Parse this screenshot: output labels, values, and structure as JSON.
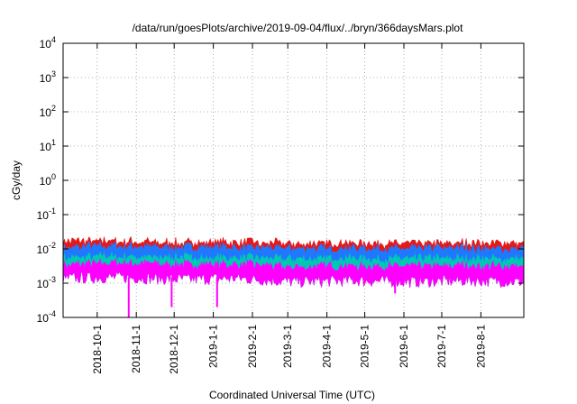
{
  "chart_data": {
    "type": "area",
    "title": "/data/run/goesPlots/archive/2019-09-04/flux/../bryn/366daysMars.plot",
    "xlabel": "Coordinated Universal Time (UTC)",
    "ylabel": "cGy/day",
    "yscale": "log",
    "ylim": [
      0.0001,
      10000
    ],
    "xlim": [
      "2018-09-04",
      "2019-09-04"
    ],
    "grid": true,
    "y_ticks": [
      {
        "base": "10",
        "exp": "-4"
      },
      {
        "base": "10",
        "exp": "-3"
      },
      {
        "base": "10",
        "exp": "-2"
      },
      {
        "base": "10",
        "exp": "-1"
      },
      {
        "base": "10",
        "exp": "0"
      },
      {
        "base": "10",
        "exp": "1"
      },
      {
        "base": "10",
        "exp": "2"
      },
      {
        "base": "10",
        "exp": "3"
      },
      {
        "base": "10",
        "exp": "4"
      }
    ],
    "x_ticks": [
      "2018-10-1",
      "2018-11-1",
      "2018-12-1",
      "2019-1-1",
      "2019-2-1",
      "2019-3-1",
      "2019-4-1",
      "2019-5-1",
      "2019-6-1",
      "2019-7-1",
      "2019-8-1"
    ],
    "series": [
      {
        "color": "#e31a1c",
        "x": [
          "2018-09-04",
          "2018-10-15",
          "2018-12-01",
          "2019-01-15",
          "2019-03-01",
          "2019-04-15",
          "2019-06-01",
          "2019-07-15",
          "2019-09-04"
        ],
        "values": [
          0.016,
          0.017,
          0.015,
          0.016,
          0.014,
          0.015,
          0.014,
          0.015,
          0.014
        ]
      },
      {
        "color": "#1f78ff",
        "x": [
          "2018-09-04",
          "2018-10-15",
          "2018-12-01",
          "2019-01-15",
          "2019-03-01",
          "2019-04-15",
          "2019-06-01",
          "2019-07-15",
          "2019-09-04"
        ],
        "values": [
          0.011,
          0.012,
          0.011,
          0.011,
          0.01,
          0.0105,
          0.01,
          0.0105,
          0.01
        ]
      },
      {
        "color": "#00c8b4",
        "x": [
          "2018-09-04",
          "2018-10-15",
          "2018-12-01",
          "2019-01-15",
          "2019-03-01",
          "2019-04-15",
          "2019-06-01",
          "2019-07-15",
          "2019-09-04"
        ],
        "values": [
          0.0055,
          0.006,
          0.0055,
          0.0055,
          0.005,
          0.0052,
          0.005,
          0.0052,
          0.005
        ]
      },
      {
        "color": "#ff00ff",
        "x": [
          "2018-09-04",
          "2018-10-15",
          "2018-12-01",
          "2019-01-15",
          "2019-03-01",
          "2019-04-15",
          "2019-06-01",
          "2019-07-15",
          "2019-09-04"
        ],
        "values": [
          0.0035,
          0.0038,
          0.0035,
          0.0035,
          0.003,
          0.0032,
          0.003,
          0.0032,
          0.003
        ]
      }
    ],
    "floor": [
      0.0014,
      0.0015,
      0.0013,
      0.0014,
      0.0011,
      0.0012,
      0.0011,
      0.0012,
      0.0011
    ],
    "dips": [
      {
        "x": "2018-10-26",
        "value": 0.0001
      },
      {
        "x": "2018-11-29",
        "value": 0.0002
      },
      {
        "x": "2019-01-04",
        "value": 0.0002
      },
      {
        "x": "2019-05-25",
        "value": 0.0005
      }
    ]
  }
}
